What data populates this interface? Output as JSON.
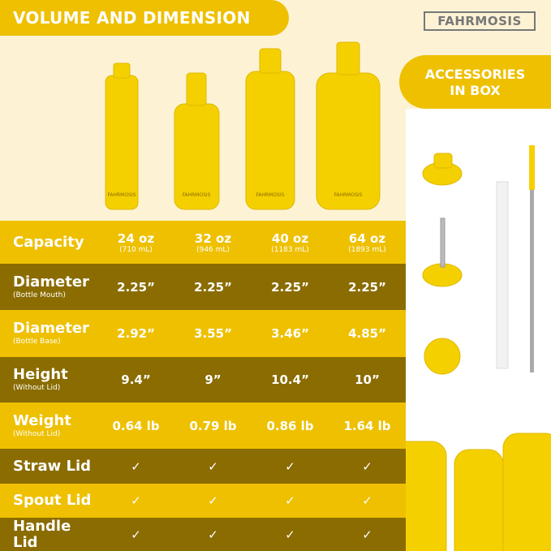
{
  "title": "VOLUME AND DIMENSION",
  "logo": "FAHRMOSIS",
  "accessories": {
    "line1": "ACCESSORIES",
    "line2": "IN BOX"
  },
  "bottle_label": "FAHRMOSIS",
  "colors": {
    "yellow": "#eec000",
    "dark": "#8a6c00",
    "cream": "#fdf3d4"
  },
  "rows": [
    {
      "label": "Capacity",
      "sub": "",
      "style": "light",
      "values": [
        "24 oz",
        "32 oz",
        "40 oz",
        "64 oz"
      ],
      "subs": [
        "(710 mL)",
        "(946 mL)",
        "(1183 mL)",
        "(1893 mL)"
      ]
    },
    {
      "label": "Diameter",
      "sub": "(Bottle Mouth)",
      "style": "dark",
      "values": [
        "2.25”",
        "2.25”",
        "2.25”",
        "2.25”"
      ]
    },
    {
      "label": "Diameter",
      "sub": "(Bottle Base)",
      "style": "light",
      "values": [
        "2.92”",
        "3.55”",
        "3.46”",
        "4.85”"
      ]
    },
    {
      "label": "Height",
      "sub": "(Without Lid)",
      "style": "dark",
      "values": [
        "9.4”",
        "9”",
        "10.4”",
        "10”"
      ]
    },
    {
      "label": "Weight",
      "sub": "(Without Lid)",
      "style": "light",
      "values": [
        "0.64 lb",
        "0.79 lb",
        "0.86 lb",
        "1.64 lb"
      ]
    },
    {
      "label": "Straw Lid",
      "sub": "",
      "style": "dark",
      "values": [
        "✓",
        "✓",
        "✓",
        "✓"
      ]
    },
    {
      "label": "Spout Lid",
      "sub": "",
      "style": "light",
      "values": [
        "✓",
        "✓",
        "✓",
        "✓"
      ]
    },
    {
      "label": "Handle Lid",
      "sub": "",
      "style": "dark",
      "values": [
        "✓",
        "✓",
        "✓",
        "✓"
      ]
    }
  ]
}
